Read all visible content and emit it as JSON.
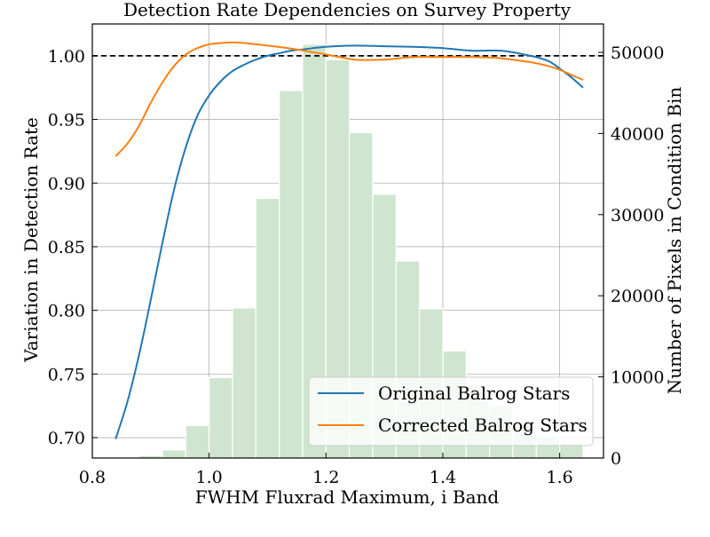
{
  "chart_data": {
    "type": "bar+line",
    "title": "Detection Rate Dependencies on Survey Property",
    "xlabel": "FWHM Fluxrad Maximum, i Band",
    "ylabel_left": "Variation in Detection Rate",
    "ylabel_right": "Number of Pixels in Condition Bin",
    "xlim": [
      0.8,
      1.675
    ],
    "ylim_left": [
      0.684,
      1.025
    ],
    "ylim_right": [
      0,
      53500
    ],
    "x_ticks": [
      "0.8",
      "1.0",
      "1.2",
      "1.4",
      "1.6"
    ],
    "y_left_ticks": [
      "0.70",
      "0.75",
      "0.80",
      "0.85",
      "0.90",
      "0.95",
      "1.00"
    ],
    "y_right_ticks": [
      "0",
      "10000",
      "20000",
      "30000",
      "40000",
      "50000"
    ],
    "grid": true,
    "reference_line": {
      "y": 1.0,
      "style": "dashed",
      "color": "#000000"
    },
    "histogram": {
      "color": "#cfe5cf",
      "bin_width": 0.04,
      "bin_centers": [
        0.86,
        0.9,
        0.94,
        0.98,
        1.02,
        1.06,
        1.1,
        1.14,
        1.18,
        1.22,
        1.26,
        1.3,
        1.34,
        1.38,
        1.42,
        1.46,
        1.5,
        1.54,
        1.58,
        1.62
      ],
      "counts": [
        0,
        300,
        1000,
        4000,
        9900,
        18500,
        32000,
        45300,
        51000,
        49100,
        40100,
        32500,
        24300,
        18400,
        13200,
        9000,
        6400,
        4200,
        2700,
        1900
      ]
    },
    "series": [
      {
        "name": "Original Balrog Stars",
        "color": "#1f77b4",
        "x": [
          0.84,
          0.86,
          0.88,
          0.9,
          0.92,
          0.94,
          0.96,
          0.98,
          1.0,
          1.02,
          1.04,
          1.06,
          1.08,
          1.1,
          1.12,
          1.14,
          1.16,
          1.2,
          1.25,
          1.3,
          1.35,
          1.4,
          1.45,
          1.5,
          1.55,
          1.58,
          1.6,
          1.62,
          1.64
        ],
        "values": [
          0.699,
          0.728,
          0.765,
          0.808,
          0.853,
          0.895,
          0.928,
          0.953,
          0.969,
          0.98,
          0.988,
          0.993,
          0.997,
          1.0,
          1.002,
          1.004,
          1.005,
          1.007,
          1.008,
          1.0075,
          1.007,
          1.006,
          1.004,
          1.004,
          1.0,
          0.996,
          0.99,
          0.983,
          0.975
        ]
      },
      {
        "name": "Corrected Balrog Stars",
        "color": "#ff7f0e",
        "x": [
          0.84,
          0.86,
          0.88,
          0.9,
          0.92,
          0.94,
          0.96,
          0.98,
          1.0,
          1.02,
          1.04,
          1.06,
          1.08,
          1.1,
          1.15,
          1.2,
          1.25,
          1.3,
          1.35,
          1.4,
          1.45,
          1.5,
          1.55,
          1.58,
          1.6,
          1.62,
          1.64
        ],
        "values": [
          0.921,
          0.931,
          0.945,
          0.963,
          0.979,
          0.992,
          1.001,
          1.006,
          1.009,
          1.01,
          1.0105,
          1.01,
          1.009,
          1.008,
          1.005,
          1.001,
          0.997,
          0.997,
          0.999,
          0.999,
          0.999,
          0.998,
          0.995,
          0.992,
          0.989,
          0.985,
          0.981
        ]
      }
    ],
    "legend": {
      "placement": "bottom-right"
    }
  }
}
